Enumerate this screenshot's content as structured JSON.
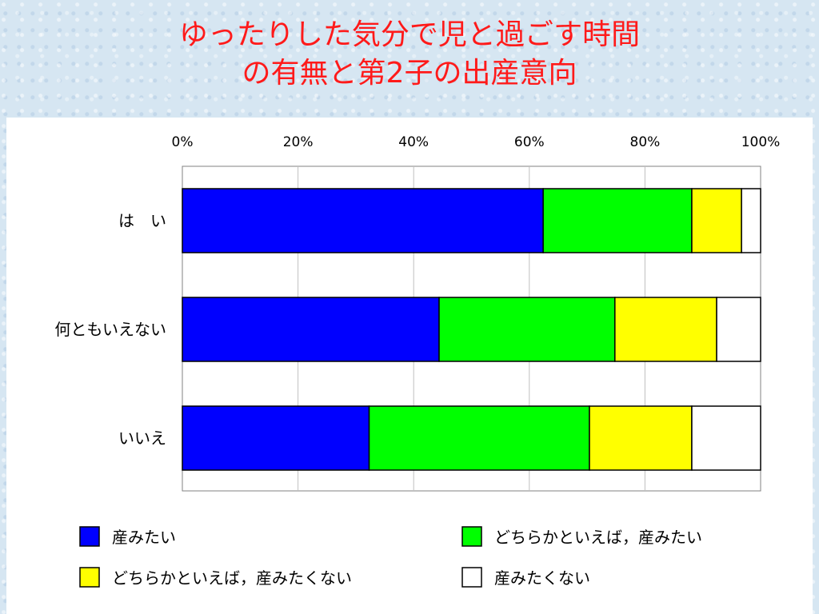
{
  "slide": {
    "title_line1": "ゆったりした気分で児と過ごす時間",
    "title_line2": "の有無と第2子の出産意向",
    "title_color": "#ff1a1a"
  },
  "chart_data": {
    "type": "bar",
    "orientation": "horizontal",
    "stacked": "percent",
    "title": "",
    "xlabel": "",
    "ylabel": "",
    "xlim": [
      0,
      100
    ],
    "x_ticks": [
      "0%",
      "20%",
      "40%",
      "60%",
      "80%",
      "100%"
    ],
    "grid": true,
    "legend_position": "bottom",
    "categories": [
      "は　い",
      "何ともいえない",
      "いいえ"
    ],
    "series": [
      {
        "name": "産みたい",
        "color": "#0000ff",
        "values": [
          62.4,
          44.4,
          32.3
        ]
      },
      {
        "name": "どちらかといえば，産みたい",
        "color": "#00ff00",
        "values": [
          25.7,
          30.4,
          38.1
        ]
      },
      {
        "name": "どちらかといえば，産みたくない",
        "color": "#ffff00",
        "values": [
          8.6,
          17.6,
          17.7
        ]
      },
      {
        "name": "産みたくない",
        "color": "#ffffff",
        "values": [
          3.3,
          7.6,
          11.9
        ]
      }
    ]
  }
}
